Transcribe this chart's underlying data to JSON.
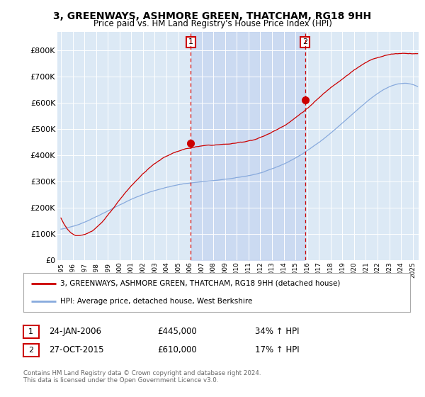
{
  "title": "3, GREENWAYS, ASHMORE GREEN, THATCHAM, RG18 9HH",
  "subtitle": "Price paid vs. HM Land Registry's House Price Index (HPI)",
  "yticks": [
    0,
    100000,
    200000,
    300000,
    400000,
    500000,
    600000,
    700000,
    800000
  ],
  "ytick_labels": [
    "£0",
    "£100K",
    "£200K",
    "£300K",
    "£400K",
    "£500K",
    "£600K",
    "£700K",
    "£800K"
  ],
  "ylim": [
    0,
    870000
  ],
  "background_color": "#ffffff",
  "plot_bg_color": "#dce9f5",
  "line1_color": "#cc0000",
  "line2_color": "#88aadd",
  "fill_color": "#c8d8ee",
  "line1_label": "3, GREENWAYS, ASHMORE GREEN, THATCHAM, RG18 9HH (detached house)",
  "line2_label": "HPI: Average price, detached house, West Berkshire",
  "sale1_date": "24-JAN-2006",
  "sale1_price": "£445,000",
  "sale1_pct": "34% ↑ HPI",
  "sale1_x": 2006.07,
  "sale1_y": 445000,
  "sale2_date": "27-OCT-2015",
  "sale2_price": "£610,000",
  "sale2_pct": "17% ↑ HPI",
  "sale2_x": 2015.82,
  "sale2_y": 610000,
  "vline1_x": 2006.07,
  "vline2_x": 2015.82,
  "footer": "Contains HM Land Registry data © Crown copyright and database right 2024.\nThis data is licensed under the Open Government Licence v3.0.",
  "xlim_start": 1994.7,
  "xlim_end": 2025.5,
  "xtick_years": [
    1995,
    1996,
    1997,
    1998,
    1999,
    2000,
    2001,
    2002,
    2003,
    2004,
    2005,
    2006,
    2007,
    2008,
    2009,
    2010,
    2011,
    2012,
    2013,
    2014,
    2015,
    2016,
    2017,
    2018,
    2019,
    2020,
    2021,
    2022,
    2023,
    2024,
    2025
  ]
}
